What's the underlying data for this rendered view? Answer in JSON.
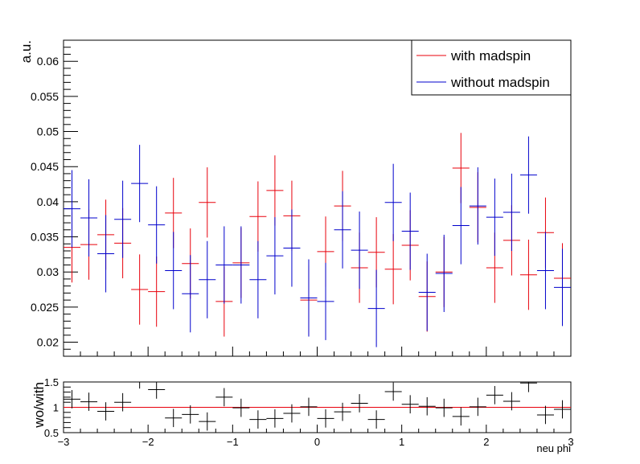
{
  "chart_data": [
    {
      "type": "scatter",
      "style": "histogram-errorbars",
      "ylabel": "a.u.",
      "xlim": [
        -3,
        3
      ],
      "ylim": [
        0.018,
        0.063
      ],
      "yticks": [
        0.02,
        0.025,
        0.03,
        0.035,
        0.04,
        0.045,
        0.05,
        0.055,
        0.06
      ],
      "ytick_labels": [
        "0.02",
        "0.025",
        "0.03",
        "0.035",
        "0.04",
        "0.045",
        "0.05",
        "0.055",
        "0.06"
      ],
      "grid": false,
      "legend_position": "top-right",
      "bin_width": 0.2,
      "x": [
        -2.9,
        -2.7,
        -2.5,
        -2.3,
        -2.1,
        -1.9,
        -1.7,
        -1.5,
        -1.3,
        -1.1,
        -0.9,
        -0.7,
        -0.5,
        -0.3,
        -0.1,
        0.1,
        0.3,
        0.5,
        0.7,
        0.9,
        1.1,
        1.3,
        1.5,
        1.7,
        1.9,
        2.1,
        2.3,
        2.5,
        2.7,
        2.9
      ],
      "series": [
        {
          "name": "with madspin",
          "color": "#e8000b",
          "values": [
            0.0335,
            0.0339,
            0.0353,
            0.0341,
            0.0275,
            0.0272,
            0.0384,
            0.0312,
            0.0399,
            0.0258,
            0.0313,
            0.0379,
            0.0416,
            0.038,
            0.026,
            0.0329,
            0.0394,
            0.0306,
            0.0328,
            0.0304,
            0.0338,
            0.0265,
            0.03,
            0.0448,
            0.0392,
            0.0306,
            0.0345,
            0.0296,
            0.0356,
            0.0291
          ],
          "errors": [
            0.005,
            0.005,
            0.005,
            0.005,
            0.005,
            0.005,
            0.005,
            0.005,
            0.005,
            0.005,
            0.005,
            0.005,
            0.005,
            0.005,
            0.005,
            0.005,
            0.005,
            0.005,
            0.005,
            0.005,
            0.005,
            0.005,
            0.005,
            0.005,
            0.005,
            0.005,
            0.005,
            0.005,
            0.005,
            0.005
          ]
        },
        {
          "name": "without madspin",
          "color": "#0000cc",
          "values": [
            0.039,
            0.0377,
            0.0326,
            0.0375,
            0.0426,
            0.0367,
            0.0302,
            0.0269,
            0.0289,
            0.031,
            0.031,
            0.0289,
            0.0323,
            0.0334,
            0.0263,
            0.0258,
            0.036,
            0.0331,
            0.0248,
            0.0399,
            0.0358,
            0.0271,
            0.0298,
            0.0366,
            0.0394,
            0.0378,
            0.0385,
            0.0438,
            0.0302,
            0.0278
          ],
          "errors": [
            0.0055,
            0.0055,
            0.0055,
            0.0055,
            0.0055,
            0.0055,
            0.0055,
            0.0055,
            0.0055,
            0.0055,
            0.0055,
            0.0055,
            0.0055,
            0.0055,
            0.0055,
            0.0055,
            0.0055,
            0.0055,
            0.0055,
            0.0055,
            0.0055,
            0.0055,
            0.0055,
            0.0055,
            0.0055,
            0.0055,
            0.0055,
            0.0055,
            0.0055,
            0.0055
          ]
        }
      ]
    },
    {
      "type": "scatter",
      "style": "ratio-errorbars",
      "xlabel": "neu phi",
      "ylabel": "wo/with",
      "xlim": [
        -3,
        3
      ],
      "ylim": [
        0.5,
        1.5
      ],
      "xticks": [
        -3,
        -2,
        -1,
        0,
        1,
        2,
        3
      ],
      "xtick_labels": [
        "−3",
        "−2",
        "−1",
        "0",
        "1",
        "2",
        "3"
      ],
      "yticks": [
        0.5,
        1,
        1.5
      ],
      "ytick_labels": [
        "0.5",
        "1",
        "1.5"
      ],
      "reference_line": 1,
      "reference_color": "#e8000b",
      "x": [
        -2.9,
        -2.7,
        -2.5,
        -2.3,
        -2.1,
        -1.9,
        -1.7,
        -1.5,
        -1.3,
        -1.1,
        -0.9,
        -0.7,
        -0.5,
        -0.3,
        -0.1,
        0.1,
        0.3,
        0.5,
        0.7,
        0.9,
        1.1,
        1.3,
        1.5,
        1.7,
        1.9,
        2.1,
        2.3,
        2.5,
        2.7,
        2.9
      ],
      "values": [
        1.16,
        1.11,
        0.92,
        1.1,
        1.55,
        1.35,
        0.79,
        0.86,
        0.72,
        1.2,
        0.99,
        0.76,
        0.78,
        0.88,
        1.01,
        0.78,
        0.91,
        1.08,
        0.76,
        1.31,
        1.06,
        1.02,
        0.99,
        0.82,
        1.01,
        1.24,
        1.12,
        1.48,
        0.85,
        0.96
      ],
      "errors": [
        0.18,
        0.18,
        0.18,
        0.18,
        0.18,
        0.18,
        0.18,
        0.18,
        0.18,
        0.18,
        0.18,
        0.18,
        0.18,
        0.18,
        0.18,
        0.18,
        0.18,
        0.18,
        0.18,
        0.18,
        0.18,
        0.18,
        0.18,
        0.18,
        0.18,
        0.18,
        0.18,
        0.18,
        0.18,
        0.18
      ],
      "color": "#000000"
    }
  ]
}
